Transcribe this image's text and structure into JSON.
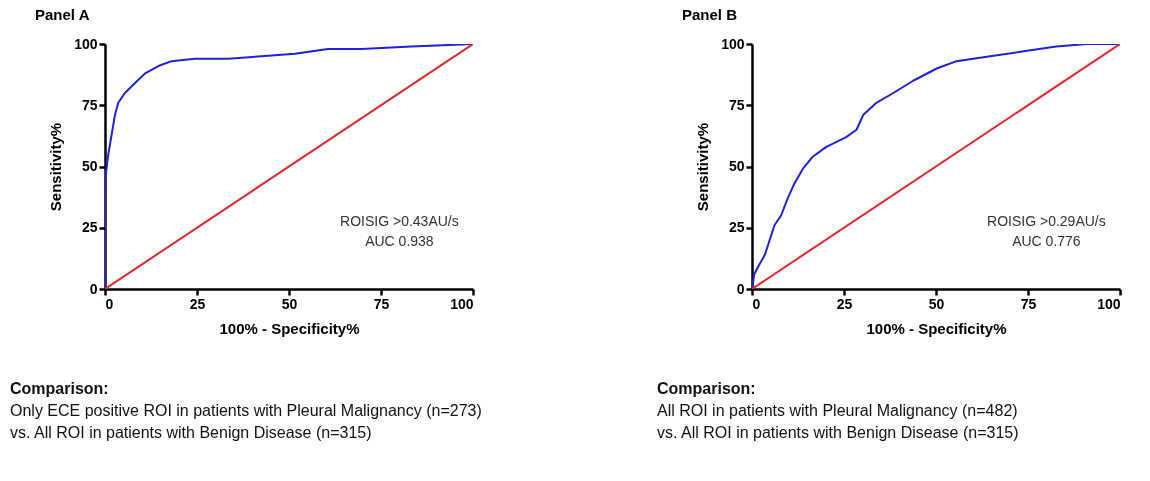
{
  "chart_data": [
    {
      "type": "line",
      "title": "Panel A",
      "xlabel": "100% - Specificity%",
      "ylabel": "Sensitivity%",
      "xlim": [
        0,
        100
      ],
      "ylim": [
        0,
        100
      ],
      "xticks": [
        0,
        25,
        50,
        75,
        100
      ],
      "yticks": [
        0,
        25,
        50,
        75,
        100
      ],
      "grid": false,
      "legend": false,
      "marker": "none",
      "series": [
        {
          "color": "#2020d8",
          "x": [
            0,
            0,
            0.9,
            1.8,
            2.7,
            3.6,
            5.4,
            8.1,
            10.9,
            14.5,
            18.1,
            24.4,
            33.5,
            42.5,
            51.6,
            60.6,
            69.7,
            83.3,
            100
          ],
          "values": [
            0,
            44,
            55,
            63,
            71,
            76,
            80,
            84,
            88,
            91,
            93,
            94,
            94,
            95,
            96,
            98,
            98,
            99,
            100
          ]
        },
        {
          "color": "#e02828",
          "x": [
            0,
            100
          ],
          "values": [
            0,
            100
          ]
        }
      ],
      "annotations": [
        "ROISIG >0.43AU/s",
        "AUC 0.938",
        "Comparison:",
        "Only ECE positive ROI in patients with Pleural Malignancy (n=273)",
        "vs. All ROI in patients with Benign Disease (n=315)"
      ]
    },
    {
      "type": "line",
      "title": "Panel B",
      "xlabel": "100% - Specificity%",
      "ylabel": "Sensitivity%",
      "xlim": [
        0,
        100
      ],
      "ylim": [
        0,
        100
      ],
      "xticks": [
        0,
        25,
        50,
        75,
        100
      ],
      "yticks": [
        0,
        25,
        50,
        75,
        100
      ],
      "grid": false,
      "legend": false,
      "marker": "none",
      "series": [
        {
          "color": "#2020d8",
          "x": [
            0,
            0.6,
            2,
            3.5,
            4.8,
            6.1,
            7.9,
            9.7,
            11.5,
            13.8,
            16.5,
            20.2,
            25.6,
            28.4,
            30.2,
            33.8,
            38.4,
            43.8,
            50.2,
            55.6,
            64.7,
            73.8,
            82.7,
            91,
            100
          ],
          "values": [
            0,
            6,
            10,
            14,
            20,
            26,
            30,
            37,
            43,
            49,
            54,
            58,
            62,
            65,
            71,
            76,
            80,
            85,
            90,
            93,
            95,
            97,
            99,
            100,
            100
          ]
        },
        {
          "color": "#e02828",
          "x": [
            0,
            100
          ],
          "values": [
            0,
            100
          ]
        }
      ],
      "annotations": [
        "ROISIG >0.29AU/s",
        "AUC 0.776",
        "Comparison:",
        "All ROI in patients with Pleural Malignancy (n=482)",
        "vs. All ROI in patients with Benign Disease (n=315)"
      ]
    }
  ]
}
